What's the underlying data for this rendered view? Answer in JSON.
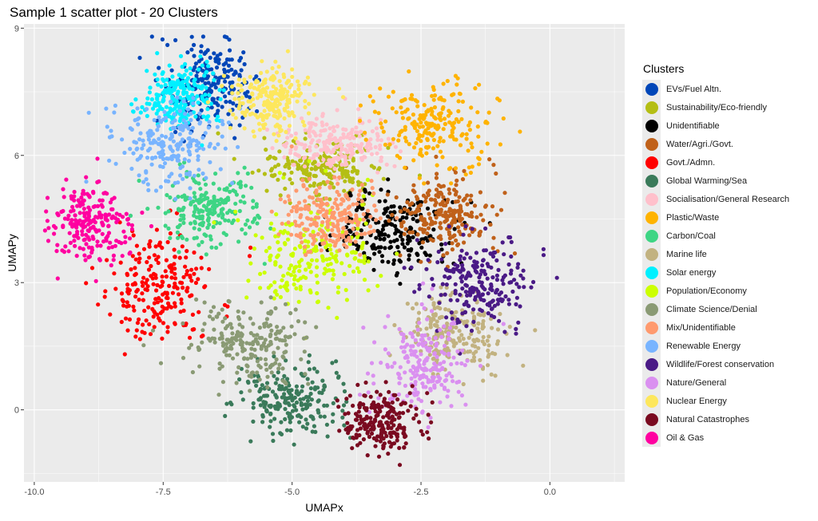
{
  "chart_data": {
    "type": "scatter",
    "title": "Sample 1 scatter plot - 20 Clusters",
    "xlabel": "UMAPx",
    "ylabel": "UMAPy",
    "xlim": [
      -10.2,
      1.45
    ],
    "ylim": [
      -1.7,
      9.1
    ],
    "x_ticks": [
      -10.0,
      -7.5,
      -5.0,
      -2.5,
      0.0
    ],
    "x_tick_labels": [
      "-10.0",
      "-7.5",
      "-5.0",
      "-2.5",
      "0.0"
    ],
    "y_ticks": [
      0,
      3,
      6,
      9
    ],
    "y_tick_labels": [
      "0",
      "3",
      "6",
      "9"
    ],
    "grid": true,
    "legend_title": "Clusters",
    "legend_position": "right",
    "series": [
      {
        "name": "EVs/Fuel Altn.",
        "color": "#0046b8",
        "center": [
          -6.6,
          7.7
        ],
        "spread": [
          0.45,
          0.45
        ]
      },
      {
        "name": "Sustainability/Eco-friendly",
        "color": "#b4be14",
        "center": [
          -4.4,
          5.7
        ],
        "spread": [
          0.55,
          0.35
        ]
      },
      {
        "name": "Unidentifiable",
        "color": "#000000",
        "center": [
          -3.1,
          4.2
        ],
        "spread": [
          0.6,
          0.5
        ]
      },
      {
        "name": "Water/Agri./Govt.",
        "color": "#c0611a",
        "center": [
          -2.0,
          4.6
        ],
        "spread": [
          0.45,
          0.5
        ]
      },
      {
        "name": "Govt./Admn.",
        "color": "#ff0000",
        "center": [
          -7.6,
          2.9
        ],
        "spread": [
          0.5,
          0.65
        ]
      },
      {
        "name": "Global Warming/Sea",
        "color": "#3a7a5a",
        "center": [
          -5.0,
          0.2
        ],
        "spread": [
          0.5,
          0.4
        ]
      },
      {
        "name": "Socialisation/General Research",
        "color": "#ffc0cb",
        "center": [
          -4.1,
          6.3
        ],
        "spread": [
          0.55,
          0.3
        ]
      },
      {
        "name": "Plastic/Waste",
        "color": "#ffb300",
        "center": [
          -2.2,
          6.7
        ],
        "spread": [
          0.55,
          0.5
        ]
      },
      {
        "name": "Carbon/Coal",
        "color": "#3ed584",
        "center": [
          -6.6,
          4.7
        ],
        "spread": [
          0.5,
          0.45
        ]
      },
      {
        "name": "Marine life",
        "color": "#c2b280",
        "center": [
          -1.9,
          1.8
        ],
        "spread": [
          0.5,
          0.45
        ]
      },
      {
        "name": "Solar energy",
        "color": "#00f0ff",
        "center": [
          -7.2,
          7.4
        ],
        "spread": [
          0.35,
          0.35
        ]
      },
      {
        "name": "Population/Economy",
        "color": "#ccff00",
        "center": [
          -4.6,
          3.6
        ],
        "spread": [
          0.6,
          0.6
        ]
      },
      {
        "name": "Climate Science/Denial",
        "color": "#8a9a74",
        "center": [
          -5.9,
          1.6
        ],
        "spread": [
          0.6,
          0.45
        ]
      },
      {
        "name": "Mix/Unidentifiable",
        "color": "#ff9a6e",
        "center": [
          -4.3,
          4.6
        ],
        "spread": [
          0.45,
          0.4
        ]
      },
      {
        "name": "Renewable Energy",
        "color": "#78b4ff",
        "center": [
          -7.4,
          6.3
        ],
        "spread": [
          0.5,
          0.45
        ]
      },
      {
        "name": "Wildlife/Forest conservation",
        "color": "#4a1a86",
        "center": [
          -1.3,
          3.0
        ],
        "spread": [
          0.5,
          0.55
        ]
      },
      {
        "name": "Nature/General",
        "color": "#da90f0",
        "center": [
          -2.5,
          1.0
        ],
        "spread": [
          0.45,
          0.55
        ]
      },
      {
        "name": "Nuclear Energy",
        "color": "#fde75d",
        "center": [
          -5.4,
          7.3
        ],
        "spread": [
          0.4,
          0.35
        ]
      },
      {
        "name": "Natural Catastrophes",
        "color": "#7a0a20",
        "center": [
          -3.3,
          -0.3
        ],
        "spread": [
          0.4,
          0.35
        ]
      },
      {
        "name": "Oil & Gas",
        "color": "#ff00a0",
        "center": [
          -8.9,
          4.4
        ],
        "spread": [
          0.4,
          0.45
        ]
      }
    ]
  }
}
